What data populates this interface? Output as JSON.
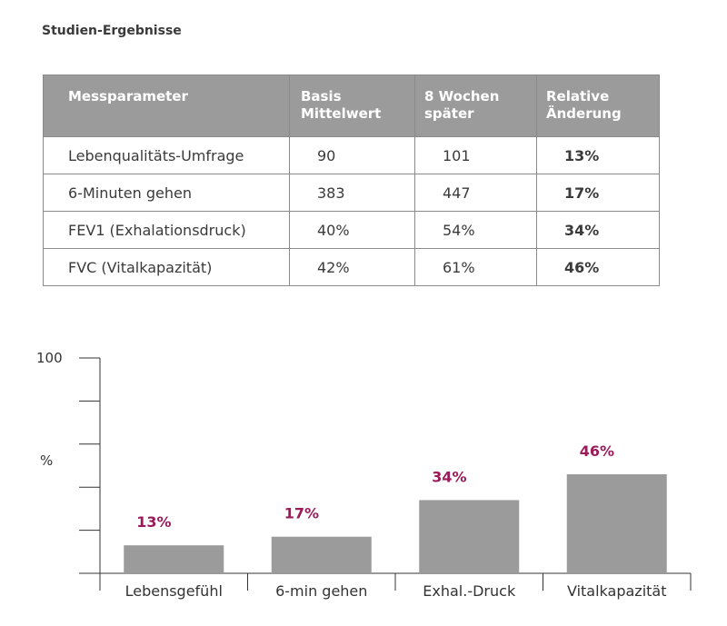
{
  "title": "Studien-Ergebnisse",
  "table": {
    "headers": [
      {
        "line1": "Messparameter",
        "line2": ""
      },
      {
        "line1": "Basis",
        "line2": "Mittelwert"
      },
      {
        "line1": "8 Wochen",
        "line2": "später"
      },
      {
        "line1": "Relative",
        "line2": "Änderung"
      }
    ],
    "rows": [
      {
        "param": "Lebenqualitäts-Umfrage",
        "baseline": "90",
        "after8": "101",
        "change": "13%"
      },
      {
        "param": "6-Minuten gehen",
        "baseline": "383",
        "after8": "447",
        "change": "17%"
      },
      {
        "param": "FEV1 (Exhalationsdruck)",
        "baseline": "40%",
        "after8": "54%",
        "change": "34%"
      },
      {
        "param": "FVC (Vitalkapazität)",
        "baseline": "42%",
        "after8": "61%",
        "change": "46%"
      }
    ]
  },
  "colors": {
    "header_bg": "#9b9b9b",
    "bar": "#9b9b9b",
    "accent": "#9b1b5a",
    "axis": "#333333"
  },
  "chart_data": {
    "type": "bar",
    "categories": [
      "Lebensgefühl",
      "6-min gehen",
      "Exhal.-Druck",
      "Vitalkapazität"
    ],
    "values": [
      13,
      17,
      34,
      46
    ],
    "value_labels": [
      "13%",
      "17%",
      "34%",
      "46%"
    ],
    "title": "",
    "xlabel": "",
    "ylabel": "%",
    "ylim": [
      0,
      100
    ],
    "ytick_label": "100",
    "y_ticks": [
      0,
      20,
      40,
      60,
      80,
      100
    ],
    "grid": false,
    "legend": "none"
  }
}
